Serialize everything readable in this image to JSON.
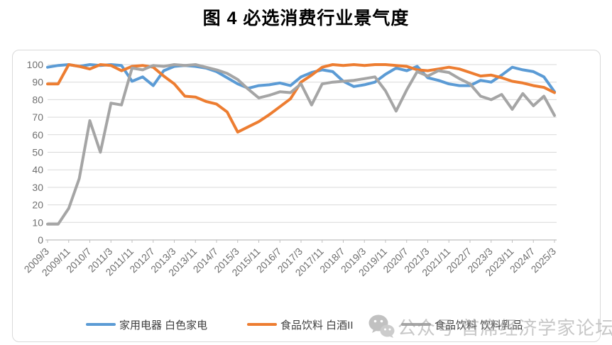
{
  "page": {
    "title": "图 4 必选消费行业景气度"
  },
  "watermark": {
    "text": "公众号 首席经济学家论坛",
    "icon": "wechat-icon",
    "color": "#9b9b9b"
  },
  "colors": {
    "series_blue": "#5B9BD5",
    "series_orange": "#ED7D31",
    "series_gray": "#A5A5A5",
    "gridline": "#D9D9D9",
    "axis_line": "#BFBFBF",
    "axis_text": "#6f6f6f",
    "chart_border": "#D9D9D9",
    "legend_text": "#404040"
  },
  "chart_data": {
    "type": "line",
    "title": "图 4 必选消费行业景气度",
    "xlabel": "",
    "ylabel": "",
    "ylim": [
      0,
      100
    ],
    "y_ticks": [
      0,
      10,
      20,
      30,
      40,
      50,
      60,
      70,
      80,
      90,
      100
    ],
    "grid": "horizontal",
    "legend_position": "bottom",
    "x": [
      "2009/3",
      "2009/7",
      "2009/11",
      "2010/3",
      "2010/7",
      "2010/11",
      "2011/3",
      "2011/7",
      "2011/11",
      "2012/3",
      "2012/7",
      "2012/11",
      "2013/3",
      "2013/7",
      "2013/11",
      "2014/3",
      "2014/7",
      "2014/11",
      "2015/3",
      "2015/7",
      "2015/11",
      "2016/3",
      "2016/7",
      "2016/11",
      "2017/3",
      "2017/7",
      "2017/11",
      "2018/3",
      "2018/7",
      "2018/11",
      "2019/3",
      "2019/7",
      "2019/11",
      "2020/3",
      "2020/7",
      "2020/11",
      "2021/3",
      "2021/7",
      "2021/11",
      "2022/3",
      "2022/7",
      "2022/11",
      "2023/3",
      "2023/7",
      "2023/11",
      "2024/3",
      "2024/7",
      "2024/11",
      "2025/3"
    ],
    "x_tick_labels": [
      "2009/3",
      "2009/11",
      "2010/7",
      "2011/3",
      "2011/11",
      "2012/7",
      "2013/3",
      "2013/11",
      "2014/7",
      "2015/3",
      "2015/11",
      "2016/7",
      "2017/3",
      "2017/11",
      "2018/7",
      "2019/3",
      "2019/11",
      "2020/7",
      "2021/3",
      "2021/11",
      "2022/7",
      "2023/3",
      "2023/11",
      "2024/7",
      "2025/3"
    ],
    "series": [
      {
        "name": "家用电器 白色家电",
        "color": "#5B9BD5",
        "values": [
          98.5,
          99.5,
          100,
          99,
          100,
          99.5,
          100,
          99.5,
          90.5,
          93,
          88,
          96.5,
          99,
          99.5,
          99,
          98,
          96,
          92.5,
          89,
          86.5,
          88,
          88.5,
          89.5,
          88,
          93,
          95.5,
          97,
          96,
          90.5,
          87.5,
          88.5,
          90,
          94.5,
          98,
          96.5,
          99,
          92.5,
          91,
          89,
          88,
          88,
          91,
          90,
          94,
          98.5,
          97,
          96,
          93,
          84.5
        ]
      },
      {
        "name": "食品饮料 白酒II",
        "color": "#ED7D31",
        "values": [
          89,
          89,
          100,
          99,
          97.5,
          100,
          99.5,
          96.5,
          99,
          99.5,
          98.5,
          93.5,
          89,
          82,
          81.5,
          79,
          77.5,
          73,
          61.5,
          64.5,
          67.5,
          71.5,
          76,
          80.5,
          90,
          94,
          98.5,
          100,
          99.5,
          100,
          99.5,
          100,
          100,
          99.5,
          99,
          97,
          96.5,
          97.5,
          98.5,
          97.5,
          95.5,
          93.5,
          94,
          92.5,
          90.5,
          89.5,
          88,
          87,
          84
        ]
      },
      {
        "name": "食品饮料 饮料乳品",
        "color": "#A5A5A5",
        "values": [
          9,
          9,
          18,
          35,
          68,
          50,
          78,
          77,
          98,
          97,
          99.5,
          99,
          100,
          99.5,
          100,
          98.5,
          97,
          95,
          91.5,
          86,
          81,
          82.5,
          84.5,
          84,
          89,
          77,
          89,
          90,
          90.5,
          91,
          92,
          93,
          85,
          73.5,
          85.5,
          96,
          93.5,
          96.5,
          95.5,
          92,
          89,
          82,
          80,
          83,
          74.5,
          83.5,
          76.5,
          82,
          71
        ]
      }
    ]
  }
}
